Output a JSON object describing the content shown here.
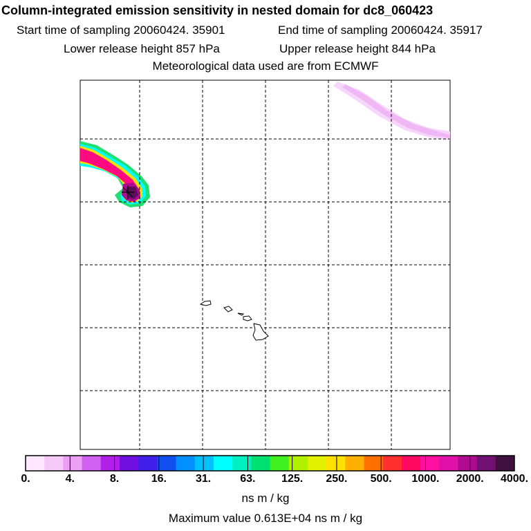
{
  "title": "Column-integrated emission sensitivity in nested domain for dc8_060423",
  "start_time": "Start time of sampling 20060424. 35901",
  "end_time": "End time of sampling 20060424. 35917",
  "lower_release": "Lower release height  857 hPa",
  "upper_release": "Upper release height  844 hPa",
  "met_data": "Meteorological data used are from ECMWF",
  "colorbar": {
    "tick_labels": [
      "0.",
      "4.",
      "8.",
      "16.",
      "31.",
      "63.",
      "125.",
      "250.",
      "500.",
      "1000.",
      "2000.",
      "4000."
    ],
    "units": "ns m / kg",
    "colors": [
      "#ffe8ff",
      "#f6c8fa",
      "#ec9ff5",
      "#d060f0",
      "#b020e8",
      "#7010e0",
      "#4020e8",
      "#1050f0",
      "#0090ff",
      "#00c0ff",
      "#00ffff",
      "#00f0c0",
      "#00e070",
      "#40f020",
      "#b0f000",
      "#e0f000",
      "#ffe000",
      "#ffb000",
      "#ff7000",
      "#ff3030",
      "#ff0a60",
      "#ff10a0",
      "#e010a8",
      "#b00a90",
      "#701070",
      "#401040"
    ]
  },
  "max_value": "Maximum value  0.613E+04 ns m / kg",
  "map": {
    "plume_colors": {
      "outer_green": "#20e070",
      "cyan": "#00ffff",
      "yellow": "#f0f020",
      "magenta": "#ff0a80",
      "dark": "#701070",
      "light_pink": "#f4d0f8"
    }
  }
}
